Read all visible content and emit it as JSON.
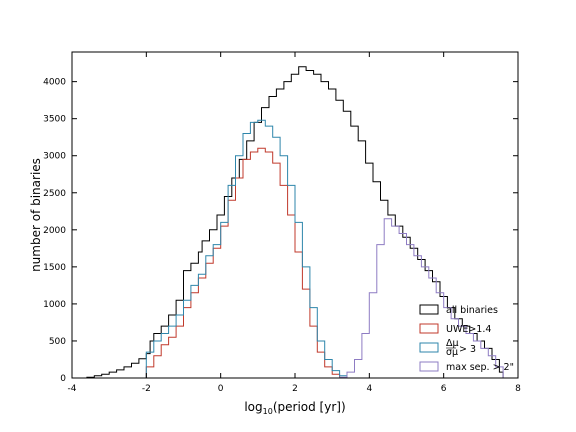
{
  "chart_data": {
    "type": "histogram",
    "xlabel": "log10(period [yr])",
    "ylabel": "number of binaries",
    "xlim": [
      -4,
      8
    ],
    "ylim": [
      0,
      4400
    ],
    "xticks": [
      -4,
      -2,
      0,
      2,
      4,
      6,
      8
    ],
    "yticks": [
      0,
      500,
      1000,
      1500,
      2000,
      2500,
      3000,
      3500,
      4000
    ],
    "legend_position": "top-right",
    "series": [
      {
        "name": "all binaries",
        "color": "#000000",
        "points": [
          [
            -3.6,
            10
          ],
          [
            -3.4,
            30
          ],
          [
            -3.2,
            50
          ],
          [
            -3.0,
            80
          ],
          [
            -2.8,
            110
          ],
          [
            -2.6,
            150
          ],
          [
            -2.4,
            200
          ],
          [
            -2.2,
            260
          ],
          [
            -2.0,
            330
          ],
          [
            -1.9,
            500
          ],
          [
            -1.8,
            600
          ],
          [
            -1.6,
            700
          ],
          [
            -1.4,
            850
          ],
          [
            -1.2,
            1050
          ],
          [
            -1.0,
            1450
          ],
          [
            -0.8,
            1550
          ],
          [
            -0.6,
            1700
          ],
          [
            -0.5,
            1850
          ],
          [
            -0.3,
            2000
          ],
          [
            -0.1,
            2200
          ],
          [
            0.1,
            2450
          ],
          [
            0.3,
            2700
          ],
          [
            0.5,
            2950
          ],
          [
            0.7,
            3200
          ],
          [
            0.9,
            3450
          ],
          [
            1.1,
            3650
          ],
          [
            1.3,
            3800
          ],
          [
            1.5,
            3900
          ],
          [
            1.7,
            4000
          ],
          [
            1.9,
            4100
          ],
          [
            2.1,
            4200
          ],
          [
            2.3,
            4150
          ],
          [
            2.5,
            4100
          ],
          [
            2.7,
            4000
          ],
          [
            2.9,
            3900
          ],
          [
            3.1,
            3750
          ],
          [
            3.3,
            3600
          ],
          [
            3.5,
            3400
          ],
          [
            3.7,
            3200
          ],
          [
            3.9,
            2900
          ],
          [
            4.1,
            2650
          ],
          [
            4.3,
            2400
          ],
          [
            4.5,
            2200
          ],
          [
            4.7,
            2050
          ],
          [
            4.9,
            1900
          ],
          [
            5.1,
            1750
          ],
          [
            5.3,
            1600
          ],
          [
            5.5,
            1450
          ],
          [
            5.7,
            1300
          ],
          [
            5.9,
            1100
          ],
          [
            6.1,
            950
          ],
          [
            6.3,
            800
          ],
          [
            6.5,
            700
          ],
          [
            6.7,
            600
          ],
          [
            6.9,
            500
          ],
          [
            7.1,
            400
          ],
          [
            7.3,
            250
          ],
          [
            7.5,
            80
          ],
          [
            7.6,
            0
          ]
        ]
      },
      {
        "name": "UWE>1.4",
        "color": "#c0392b",
        "points": [
          [
            -2.0,
            150
          ],
          [
            -1.8,
            300
          ],
          [
            -1.6,
            450
          ],
          [
            -1.4,
            550
          ],
          [
            -1.2,
            700
          ],
          [
            -1.0,
            950
          ],
          [
            -0.8,
            1150
          ],
          [
            -0.6,
            1350
          ],
          [
            -0.4,
            1550
          ],
          [
            -0.2,
            1750
          ],
          [
            0.0,
            2050
          ],
          [
            0.2,
            2400
          ],
          [
            0.4,
            2700
          ],
          [
            0.6,
            2950
          ],
          [
            0.8,
            3050
          ],
          [
            1.0,
            3100
          ],
          [
            1.2,
            3050
          ],
          [
            1.4,
            2900
          ],
          [
            1.6,
            2600
          ],
          [
            1.8,
            2200
          ],
          [
            2.0,
            1700
          ],
          [
            2.2,
            1200
          ],
          [
            2.4,
            700
          ],
          [
            2.6,
            350
          ],
          [
            2.8,
            150
          ],
          [
            3.0,
            50
          ],
          [
            3.2,
            0
          ]
        ]
      },
      {
        "name": "Δμ/σμ > 3",
        "color": "#2e86ab",
        "points": [
          [
            -2.0,
            350
          ],
          [
            -1.8,
            500
          ],
          [
            -1.6,
            600
          ],
          [
            -1.4,
            700
          ],
          [
            -1.2,
            850
          ],
          [
            -1.0,
            1050
          ],
          [
            -0.8,
            1250
          ],
          [
            -0.6,
            1400
          ],
          [
            -0.4,
            1650
          ],
          [
            -0.2,
            1800
          ],
          [
            0.0,
            2100
          ],
          [
            0.2,
            2600
          ],
          [
            0.4,
            3000
          ],
          [
            0.6,
            3300
          ],
          [
            0.8,
            3450
          ],
          [
            1.0,
            3480
          ],
          [
            1.2,
            3400
          ],
          [
            1.4,
            3250
          ],
          [
            1.6,
            3000
          ],
          [
            1.8,
            2600
          ],
          [
            2.0,
            2100
          ],
          [
            2.2,
            1500
          ],
          [
            2.4,
            950
          ],
          [
            2.6,
            500
          ],
          [
            2.8,
            250
          ],
          [
            3.0,
            100
          ],
          [
            3.2,
            30
          ],
          [
            3.4,
            0
          ]
        ]
      },
      {
        "name": "max sep. > 2\"",
        "color": "#8e7cc3",
        "points": [
          [
            3.2,
            10
          ],
          [
            3.4,
            80
          ],
          [
            3.6,
            250
          ],
          [
            3.8,
            600
          ],
          [
            4.0,
            1150
          ],
          [
            4.2,
            1800
          ],
          [
            4.4,
            2150
          ],
          [
            4.6,
            2050
          ],
          [
            4.8,
            1950
          ],
          [
            5.0,
            1800
          ],
          [
            5.2,
            1650
          ],
          [
            5.4,
            1500
          ],
          [
            5.6,
            1350
          ],
          [
            5.8,
            1150
          ],
          [
            6.0,
            950
          ],
          [
            6.2,
            800
          ],
          [
            6.4,
            700
          ],
          [
            6.6,
            600
          ],
          [
            6.8,
            500
          ],
          [
            7.0,
            400
          ],
          [
            7.2,
            300
          ],
          [
            7.4,
            150
          ],
          [
            7.6,
            0
          ]
        ]
      }
    ]
  },
  "axis_labels": {
    "x": "log10(period [yr])",
    "y": "number of binaries"
  },
  "legend": {
    "items": [
      "all binaries",
      "UWE>1.4",
      "Δμ/σμ > 3",
      "max sep. > 2\""
    ]
  }
}
